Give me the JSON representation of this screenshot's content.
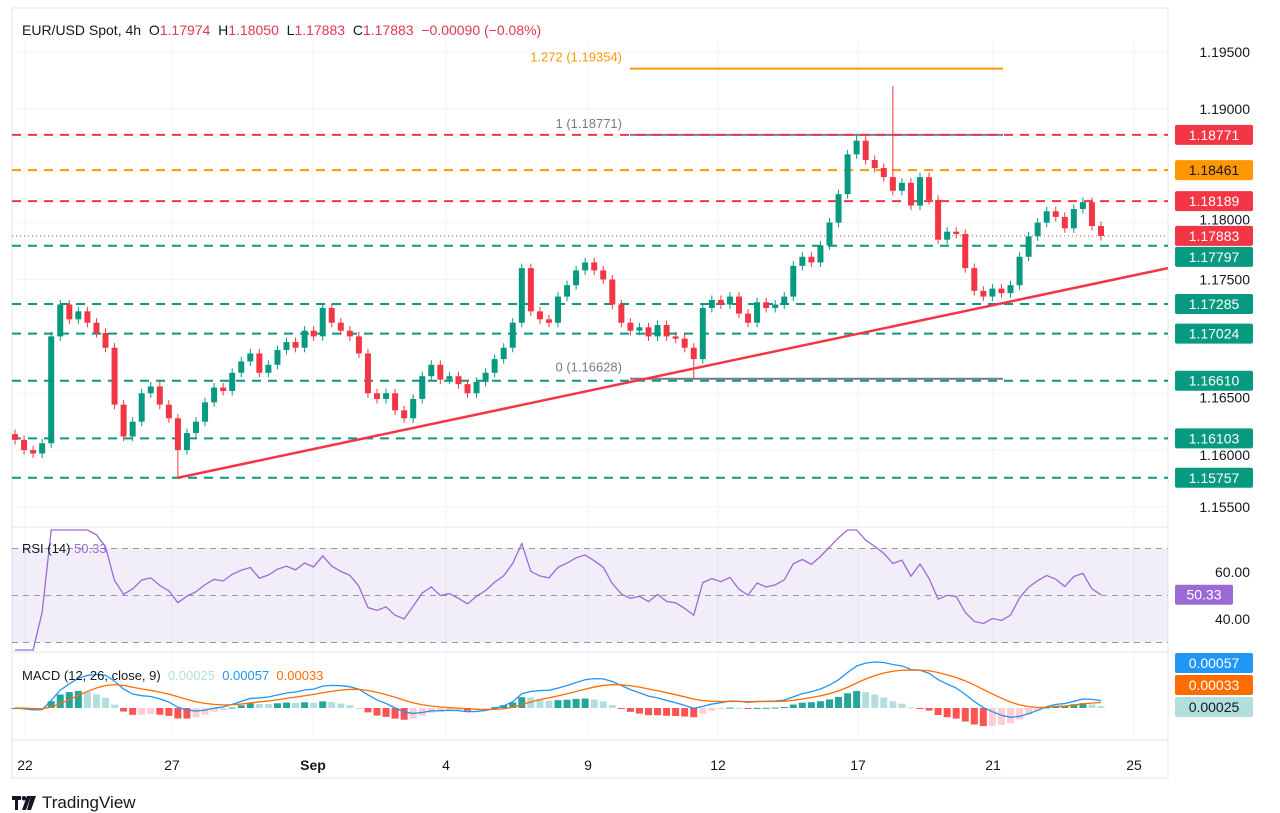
{
  "header": {
    "symbol": "EUR/USD Spot, 4h",
    "o_label": "O",
    "open": "1.17974",
    "h_label": "H",
    "high": "1.18050",
    "l_label": "L",
    "low": "1.17883",
    "c_label": "C",
    "close": "1.17883",
    "change": "−0.00090 (−0.08%)"
  },
  "colors": {
    "up": "#089981",
    "down": "#f23645",
    "resistance": "#f23645",
    "fib_ext": "#ff9800",
    "support": "#089981",
    "trendline": "#f23645",
    "rsi": "#9c6ad4",
    "macd": "#2196f3",
    "signal": "#ff6d00"
  },
  "chart_data": [
    {
      "type": "candlestick",
      "timeframe": "4h",
      "x_ticks": [
        {
          "label": "22",
          "bold": false
        },
        {
          "label": "27",
          "bold": false
        },
        {
          "label": "Sep",
          "bold": true
        },
        {
          "label": "4",
          "bold": false
        },
        {
          "label": "9",
          "bold": false
        },
        {
          "label": "12",
          "bold": false
        },
        {
          "label": "17",
          "bold": false
        },
        {
          "label": "21",
          "bold": false
        },
        {
          "label": "25",
          "bold": false
        }
      ],
      "y_ticks": [
        "1.19500",
        "1.19000",
        "1.18000",
        "1.17500",
        "1.16500",
        "1.16000",
        "1.15500"
      ],
      "ylim": [
        1.154,
        1.196
      ],
      "close": [
        1.1609,
        1.16,
        1.1597,
        1.1606,
        1.17,
        1.1728,
        1.1715,
        1.1722,
        1.1712,
        1.1703,
        1.169,
        1.164,
        1.1612,
        1.1625,
        1.165,
        1.1656,
        1.164,
        1.1628,
        1.16,
        1.1615,
        1.1625,
        1.1642,
        1.1655,
        1.1652,
        1.1668,
        1.1678,
        1.1685,
        1.1668,
        1.1675,
        1.1688,
        1.1695,
        1.169,
        1.1705,
        1.17,
        1.1725,
        1.1712,
        1.1705,
        1.17,
        1.1685,
        1.165,
        1.1645,
        1.165,
        1.1635,
        1.1628,
        1.1645,
        1.1665,
        1.1675,
        1.1662,
        1.1665,
        1.1658,
        1.165,
        1.166,
        1.1668,
        1.168,
        1.169,
        1.1712,
        1.176,
        1.1722,
        1.1715,
        1.1712,
        1.1735,
        1.1745,
        1.1758,
        1.1765,
        1.1758,
        1.175,
        1.1728,
        1.1712,
        1.1705,
        1.1708,
        1.17,
        1.171,
        1.17,
        1.1698,
        1.169,
        1.168,
        1.1725,
        1.1732,
        1.1728,
        1.1735,
        1.172,
        1.1712,
        1.173,
        1.1725,
        1.1728,
        1.1735,
        1.1762,
        1.177,
        1.1765,
        1.178,
        1.18,
        1.1825,
        1.186,
        1.1872,
        1.1855,
        1.1848,
        1.184,
        1.1828,
        1.1835,
        1.1815,
        1.184,
        1.182,
        1.1785,
        1.1792,
        1.179,
        1.176,
        1.174,
        1.1735,
        1.1742,
        1.1738,
        1.1745,
        1.177,
        1.1788,
        1.18,
        1.181,
        1.1805,
        1.1795,
        1.1812,
        1.1818,
        1.1797,
        1.17883
      ],
      "wick_extremes": [
        {
          "index": 18,
          "low": 1.15757
        },
        {
          "index": 93,
          "high": 1.18771
        },
        {
          "index": 97,
          "high": 1.192
        },
        {
          "index": 75,
          "low": 1.16628
        }
      ],
      "levels": [
        {
          "price": "1.18771",
          "kind": "resistance"
        },
        {
          "price": "1.18461",
          "kind": "fib_ext"
        },
        {
          "price": "1.18189",
          "kind": "resistance"
        },
        {
          "price": "1.17883",
          "kind": "current"
        },
        {
          "price": "1.17797",
          "kind": "support"
        },
        {
          "price": "1.17285",
          "kind": "support"
        },
        {
          "price": "1.17024",
          "kind": "support"
        },
        {
          "price": "1.16610",
          "kind": "support"
        },
        {
          "price": "1.16103",
          "kind": "support"
        },
        {
          "price": "1.15757",
          "kind": "support"
        }
      ],
      "fibonacci": [
        {
          "label": "1.272 (1.19354)",
          "price": 1.19354
        },
        {
          "label": "1 (1.18771)",
          "price": 1.18771
        },
        {
          "label": "0 (1.16628)",
          "price": 1.16628
        }
      ],
      "trendline": {
        "from": {
          "index": 18,
          "price": 1.15757
        },
        "to_price_at_axis": 1.176
      }
    },
    {
      "type": "line",
      "title": "RSI (14)",
      "value": "50.33",
      "y_ticks": [
        "60.00",
        "40.00"
      ],
      "bands": [
        70,
        50,
        30
      ],
      "ylim": [
        25,
        75
      ]
    },
    {
      "type": "bar+line",
      "title": "MACD (12, 26, close, 9)",
      "histogram": "0.00025",
      "macd": "0.00057",
      "signal": "0.00033"
    }
  ],
  "branding": {
    "logo_text": "TradingView"
  }
}
